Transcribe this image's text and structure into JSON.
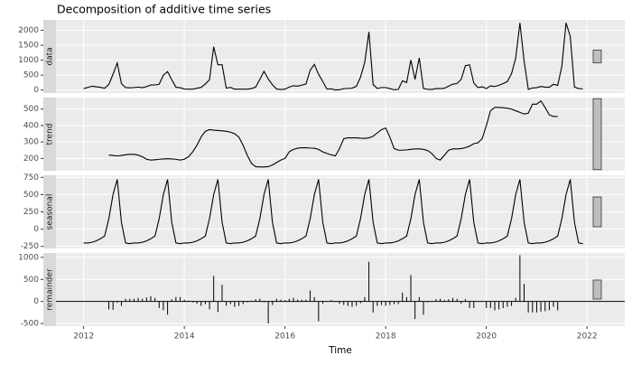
{
  "chart_data": {
    "type": "decomposition",
    "title": "Decomposition of additive time series",
    "x_label": "Time",
    "xlim": [
      2011.45,
      2022.75
    ],
    "xticks": [
      2012,
      2014,
      2016,
      2018,
      2020,
      2022
    ],
    "grid": true,
    "color": "#000000",
    "x": [
      2012,
      2012.083,
      2012.167,
      2012.25,
      2012.333,
      2012.417,
      2012.5,
      2012.583,
      2012.667,
      2012.75,
      2012.833,
      2012.917,
      2013,
      2013.083,
      2013.167,
      2013.25,
      2013.333,
      2013.417,
      2013.5,
      2013.583,
      2013.667,
      2013.75,
      2013.833,
      2013.917,
      2014,
      2014.083,
      2014.167,
      2014.25,
      2014.333,
      2014.417,
      2014.5,
      2014.583,
      2014.667,
      2014.75,
      2014.833,
      2014.917,
      2015,
      2015.083,
      2015.167,
      2015.25,
      2015.333,
      2015.417,
      2015.5,
      2015.583,
      2015.667,
      2015.75,
      2015.833,
      2015.917,
      2016,
      2016.083,
      2016.167,
      2016.25,
      2016.333,
      2016.417,
      2016.5,
      2016.583,
      2016.667,
      2016.75,
      2016.833,
      2016.917,
      2017,
      2017.083,
      2017.167,
      2017.25,
      2017.333,
      2017.417,
      2017.5,
      2017.583,
      2017.667,
      2017.75,
      2017.833,
      2017.917,
      2018,
      2018.083,
      2018.167,
      2018.25,
      2018.333,
      2018.417,
      2018.5,
      2018.583,
      2018.667,
      2018.75,
      2018.833,
      2018.917,
      2019,
      2019.083,
      2019.167,
      2019.25,
      2019.333,
      2019.417,
      2019.5,
      2019.583,
      2019.667,
      2019.75,
      2019.833,
      2019.917,
      2020,
      2020.083,
      2020.167,
      2020.25,
      2020.333,
      2020.417,
      2020.5,
      2020.583,
      2020.667,
      2020.75,
      2020.833,
      2020.917,
      2021,
      2021.083,
      2021.167,
      2021.25,
      2021.333,
      2021.417,
      2021.5,
      2021.583,
      2021.667,
      2021.75,
      2021.833,
      2021.917
    ],
    "panels": [
      {
        "name": "data",
        "type": "line",
        "ylim": [
          -100,
          2350
        ],
        "yticks": [
          0,
          500,
          1000,
          1500,
          2000
        ],
        "values": [
          50,
          90,
          130,
          110,
          90,
          60,
          190,
          528,
          905,
          218,
          82,
          75,
          85,
          100,
          80,
          115,
          170,
          172,
          195,
          497,
          618,
          347,
          95,
          80,
          35,
          30,
          30,
          60,
          90,
          205,
          345,
          1452,
          850,
          848,
          65,
          90,
          30,
          30,
          30,
          30,
          50,
          100,
          358,
          628,
          370,
          180,
          35,
          20,
          30,
          100,
          145,
          132,
          165,
          205,
          663,
          862,
          525,
          290,
          30,
          42,
          5,
          10,
          50,
          55,
          65,
          125,
          433,
          922,
          1945,
          185,
          55,
          85,
          85,
          50,
          10,
          20,
          310,
          252,
          1005,
          358,
          1078,
          55,
          28,
          20,
          50,
          50,
          60,
          130,
          198,
          218,
          360,
          815,
          845,
          240,
          85,
          110,
          50,
          140,
          120,
          160,
          218,
          285,
          550,
          1070,
          2250,
          970,
          25,
          70,
          80,
          120,
          100,
          95,
          195,
          155,
          800,
          2250,
          1800,
          100,
          50,
          40
        ]
      },
      {
        "name": "trend",
        "type": "line",
        "ylim": [
          125,
          570
        ],
        "yticks": [
          200,
          300,
          400,
          500
        ],
        "values": [
          null,
          null,
          null,
          null,
          null,
          null,
          220,
          218,
          215,
          218,
          222,
          225,
          225,
          220,
          210,
          195,
          190,
          192,
          195,
          197,
          198,
          197,
          195,
          190,
          195,
          210,
          240,
          280,
          330,
          365,
          375,
          372,
          370,
          368,
          365,
          360,
          350,
          330,
          280,
          220,
          170,
          150,
          148,
          148,
          150,
          160,
          175,
          190,
          200,
          240,
          255,
          262,
          265,
          265,
          263,
          262,
          255,
          240,
          230,
          222,
          215,
          260,
          320,
          325,
          325,
          325,
          323,
          322,
          325,
          335,
          355,
          375,
          385,
          330,
          260,
          250,
          250,
          252,
          255,
          258,
          258,
          255,
          248,
          230,
          200,
          190,
          220,
          250,
          258,
          258,
          260,
          265,
          275,
          290,
          295,
          320,
          400,
          490,
          510,
          510,
          508,
          505,
          500,
          490,
          480,
          470,
          475,
          530,
          530,
          550,
          510,
          465,
          455,
          455,
          null,
          null,
          null,
          null,
          null,
          null
        ]
      },
      {
        "name": "seasonal",
        "type": "line",
        "ylim": [
          -280,
          780
        ],
        "yticks": [
          -250,
          0,
          250,
          500,
          750
        ],
        "values": [
          -200,
          -200,
          -190,
          -170,
          -140,
          -100,
          150,
          500,
          720,
          100,
          -200,
          -210,
          -200,
          -200,
          -190,
          -170,
          -140,
          -100,
          150,
          500,
          720,
          100,
          -200,
          -210,
          -200,
          -200,
          -190,
          -170,
          -140,
          -100,
          150,
          500,
          720,
          100,
          -200,
          -210,
          -200,
          -200,
          -190,
          -170,
          -140,
          -100,
          150,
          500,
          720,
          100,
          -200,
          -210,
          -200,
          -200,
          -190,
          -170,
          -140,
          -100,
          150,
          500,
          720,
          100,
          -200,
          -210,
          -200,
          -200,
          -190,
          -170,
          -140,
          -100,
          150,
          500,
          720,
          100,
          -200,
          -210,
          -200,
          -200,
          -190,
          -170,
          -140,
          -100,
          150,
          500,
          720,
          100,
          -200,
          -210,
          -200,
          -200,
          -190,
          -170,
          -140,
          -100,
          150,
          500,
          720,
          100,
          -200,
          -210,
          -200,
          -200,
          -190,
          -170,
          -140,
          -100,
          150,
          500,
          720,
          100,
          -200,
          -210,
          -200,
          -200,
          -190,
          -170,
          -140,
          -100,
          150,
          500,
          720,
          100,
          -200,
          -210
        ]
      },
      {
        "name": "remainder",
        "type": "bar",
        "ylim": [
          -560,
          1100
        ],
        "yticks": [
          -500,
          0,
          500,
          1000
        ],
        "values": [
          null,
          null,
          null,
          null,
          null,
          null,
          -180,
          -190,
          -30,
          -100,
          60,
          60,
          60,
          80,
          60,
          90,
          120,
          80,
          -150,
          -200,
          -300,
          50,
          100,
          100,
          40,
          20,
          -20,
          -50,
          -100,
          -60,
          -180,
          580,
          -240,
          380,
          -100,
          -60,
          -120,
          -100,
          -60,
          -20,
          20,
          50,
          60,
          -20,
          -500,
          -80,
          60,
          40,
          30,
          60,
          80,
          40,
          40,
          40,
          250,
          100,
          -450,
          -50,
          0,
          30,
          -10,
          -50,
          -80,
          -100,
          -120,
          -100,
          -40,
          100,
          900,
          -250,
          -100,
          -80,
          -100,
          -80,
          -60,
          -60,
          200,
          100,
          600,
          -400,
          100,
          -300,
          -20,
          0,
          50,
          60,
          30,
          50,
          80,
          60,
          -50,
          50,
          -150,
          -150,
          -10,
          0,
          -150,
          -150,
          -200,
          -180,
          -150,
          -120,
          -100,
          80,
          1050,
          400,
          -250,
          -250,
          -250,
          -230,
          -220,
          -200,
          -120,
          -200,
          null,
          null,
          null,
          null,
          null,
          null
        ]
      }
    ]
  }
}
